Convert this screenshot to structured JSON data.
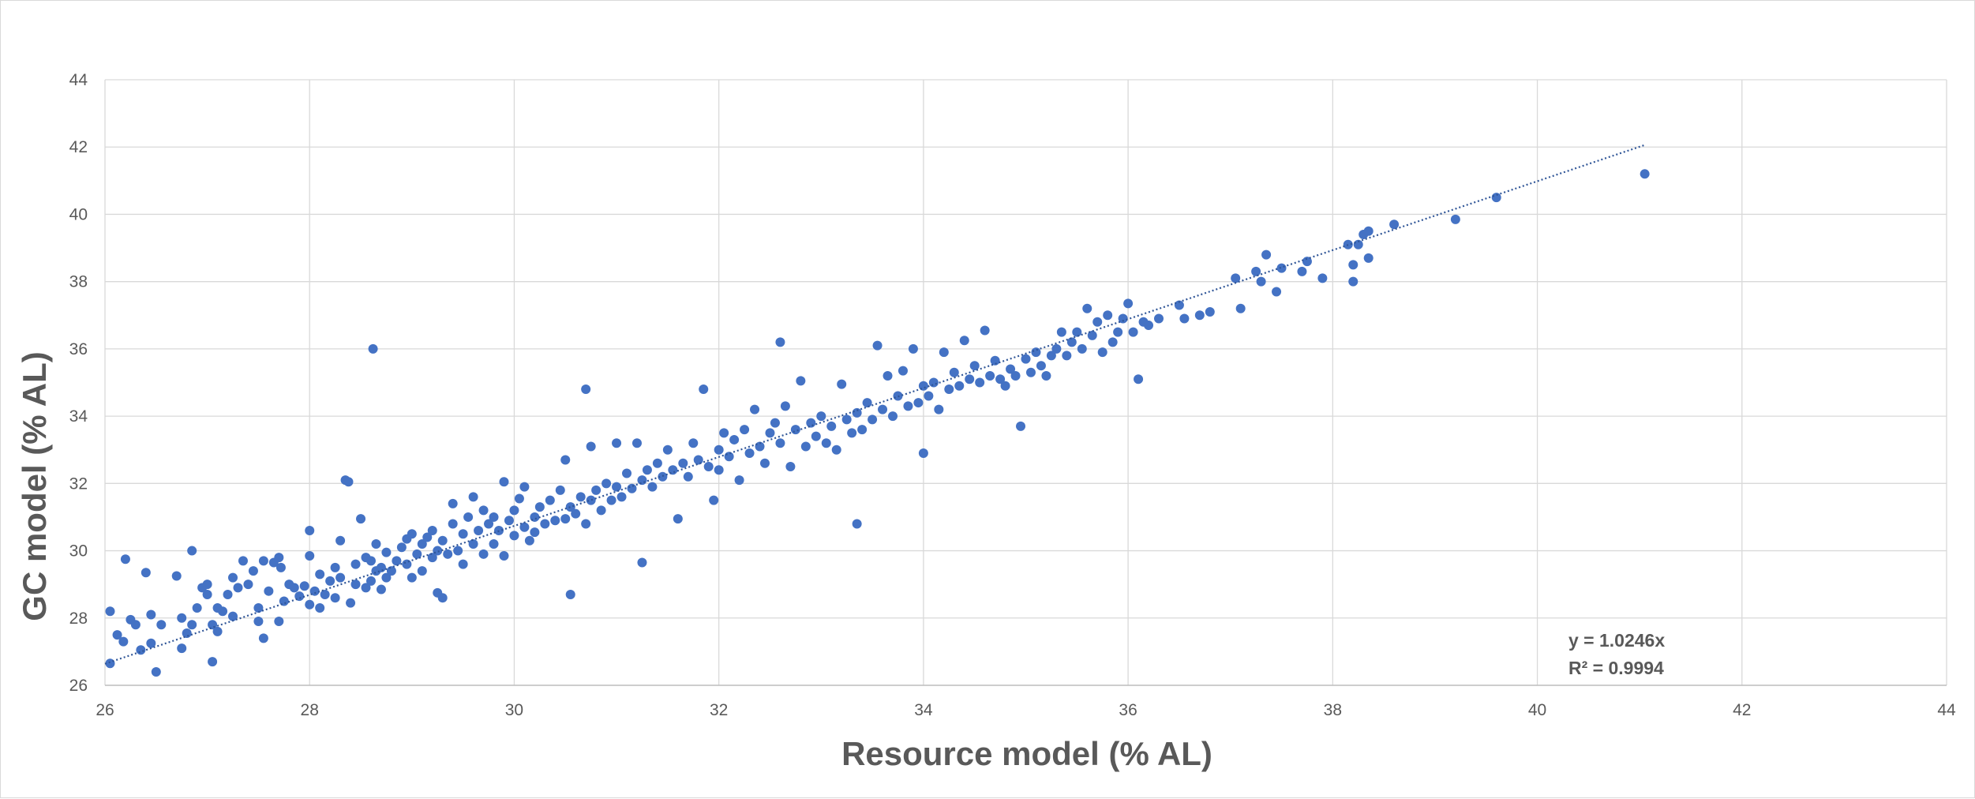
{
  "chart_data": {
    "type": "scatter",
    "title": "",
    "xlabel": "Resource model (% AL)",
    "ylabel": "GC model (% AL)",
    "xlim": [
      26,
      44
    ],
    "ylim": [
      26,
      44
    ],
    "xticks": [
      26,
      28,
      30,
      32,
      34,
      36,
      38,
      40,
      42,
      44
    ],
    "yticks": [
      26,
      28,
      30,
      32,
      34,
      36,
      38,
      40,
      42,
      44
    ],
    "xtick_labels": [
      "26",
      "28",
      "30",
      "32",
      "34",
      "36",
      "38",
      "40",
      "42",
      "44"
    ],
    "ytick_labels": [
      "26",
      "28",
      "30",
      "32",
      "34",
      "36",
      "38",
      "40",
      "42",
      "44"
    ],
    "grid": true,
    "legend": "none",
    "colors": {
      "points": "#4472C4",
      "trendline": "#2F5597",
      "grid": "#d9d9d9",
      "text": "#595959"
    },
    "trendline": {
      "type": "linear-through-origin",
      "slope": 1.0246,
      "x_range": [
        26,
        41.05
      ],
      "equation_label": "y = 1.0246x",
      "r2_label": "R² = 0.9994"
    },
    "series": [
      {
        "name": "GC vs Resource",
        "points": [
          [
            26.05,
            28.2
          ],
          [
            26.05,
            26.65
          ],
          [
            26.12,
            27.5
          ],
          [
            26.18,
            27.3
          ],
          [
            26.2,
            29.75
          ],
          [
            26.25,
            27.95
          ],
          [
            26.3,
            27.8
          ],
          [
            26.35,
            27.05
          ],
          [
            26.4,
            29.35
          ],
          [
            26.45,
            27.25
          ],
          [
            26.45,
            28.1
          ],
          [
            26.5,
            26.4
          ],
          [
            26.55,
            27.8
          ],
          [
            26.7,
            29.25
          ],
          [
            26.75,
            28.0
          ],
          [
            26.75,
            27.1
          ],
          [
            26.8,
            27.55
          ],
          [
            26.85,
            30.0
          ],
          [
            26.85,
            27.8
          ],
          [
            26.9,
            28.3
          ],
          [
            26.95,
            28.9
          ],
          [
            27.0,
            29.0
          ],
          [
            27.0,
            28.7
          ],
          [
            27.05,
            26.7
          ],
          [
            27.05,
            27.8
          ],
          [
            27.1,
            27.6
          ],
          [
            27.1,
            28.3
          ],
          [
            27.15,
            28.2
          ],
          [
            27.2,
            28.7
          ],
          [
            27.25,
            28.05
          ],
          [
            27.25,
            29.2
          ],
          [
            27.3,
            28.9
          ],
          [
            27.35,
            29.7
          ],
          [
            27.4,
            29.0
          ],
          [
            27.45,
            29.4
          ],
          [
            27.5,
            27.9
          ],
          [
            27.5,
            28.3
          ],
          [
            27.55,
            27.4
          ],
          [
            27.55,
            29.7
          ],
          [
            27.6,
            28.8
          ],
          [
            27.65,
            29.65
          ],
          [
            27.7,
            27.9
          ],
          [
            27.7,
            29.8
          ],
          [
            27.72,
            29.5
          ],
          [
            27.75,
            28.5
          ],
          [
            27.8,
            29.0
          ],
          [
            27.85,
            28.9
          ],
          [
            27.9,
            28.65
          ],
          [
            27.95,
            28.95
          ],
          [
            28.0,
            28.4
          ],
          [
            28.0,
            29.85
          ],
          [
            28.0,
            30.6
          ],
          [
            28.05,
            28.8
          ],
          [
            28.1,
            28.3
          ],
          [
            28.1,
            29.3
          ],
          [
            28.15,
            28.7
          ],
          [
            28.2,
            29.1
          ],
          [
            28.25,
            28.6
          ],
          [
            28.25,
            29.5
          ],
          [
            28.3,
            29.2
          ],
          [
            28.3,
            30.3
          ],
          [
            28.35,
            32.1
          ],
          [
            28.38,
            32.05
          ],
          [
            28.4,
            28.45
          ],
          [
            28.45,
            29.0
          ],
          [
            28.45,
            29.6
          ],
          [
            28.5,
            30.95
          ],
          [
            28.55,
            28.9
          ],
          [
            28.55,
            29.8
          ],
          [
            28.6,
            29.1
          ],
          [
            28.6,
            29.7
          ],
          [
            28.62,
            36.0
          ],
          [
            28.65,
            29.4
          ],
          [
            28.65,
            30.2
          ],
          [
            28.7,
            28.85
          ],
          [
            28.7,
            29.5
          ],
          [
            28.75,
            29.2
          ],
          [
            28.75,
            29.95
          ],
          [
            28.8,
            29.4
          ],
          [
            28.85,
            29.7
          ],
          [
            28.9,
            30.1
          ],
          [
            28.95,
            29.6
          ],
          [
            28.95,
            30.35
          ],
          [
            29.0,
            29.2
          ],
          [
            29.0,
            30.5
          ],
          [
            29.05,
            29.9
          ],
          [
            29.1,
            30.2
          ],
          [
            29.1,
            29.4
          ],
          [
            29.15,
            30.4
          ],
          [
            29.2,
            29.8
          ],
          [
            29.2,
            30.6
          ],
          [
            29.25,
            30.0
          ],
          [
            29.25,
            28.75
          ],
          [
            29.3,
            28.6
          ],
          [
            29.3,
            30.3
          ],
          [
            29.35,
            29.9
          ],
          [
            29.4,
            30.8
          ],
          [
            29.4,
            31.4
          ],
          [
            29.45,
            30.0
          ],
          [
            29.5,
            30.5
          ],
          [
            29.5,
            29.6
          ],
          [
            29.55,
            31.0
          ],
          [
            29.6,
            30.2
          ],
          [
            29.6,
            31.6
          ],
          [
            29.65,
            30.6
          ],
          [
            29.7,
            29.9
          ],
          [
            29.7,
            31.2
          ],
          [
            29.75,
            30.8
          ],
          [
            29.8,
            30.2
          ],
          [
            29.8,
            31.0
          ],
          [
            29.85,
            30.6
          ],
          [
            29.9,
            32.05
          ],
          [
            29.9,
            29.85
          ],
          [
            29.95,
            30.9
          ],
          [
            30.0,
            31.2
          ],
          [
            30.0,
            30.45
          ],
          [
            30.05,
            31.55
          ],
          [
            30.1,
            30.7
          ],
          [
            30.1,
            31.9
          ],
          [
            30.15,
            30.3
          ],
          [
            30.2,
            31.0
          ],
          [
            30.2,
            30.55
          ],
          [
            30.25,
            31.3
          ],
          [
            30.3,
            30.8
          ],
          [
            30.35,
            31.5
          ],
          [
            30.4,
            30.9
          ],
          [
            30.45,
            31.8
          ],
          [
            30.5,
            30.95
          ],
          [
            30.5,
            32.7
          ],
          [
            30.55,
            28.7
          ],
          [
            30.55,
            31.3
          ],
          [
            30.6,
            31.1
          ],
          [
            30.65,
            31.6
          ],
          [
            30.7,
            34.8
          ],
          [
            30.7,
            30.8
          ],
          [
            30.75,
            33.1
          ],
          [
            30.75,
            31.5
          ],
          [
            30.8,
            31.8
          ],
          [
            30.85,
            31.2
          ],
          [
            30.9,
            32.0
          ],
          [
            30.95,
            31.5
          ],
          [
            31.0,
            33.2
          ],
          [
            31.0,
            31.9
          ],
          [
            31.05,
            31.6
          ],
          [
            31.1,
            32.3
          ],
          [
            31.15,
            31.85
          ],
          [
            31.2,
            33.2
          ],
          [
            31.25,
            29.65
          ],
          [
            31.25,
            32.1
          ],
          [
            31.3,
            32.4
          ],
          [
            31.35,
            31.9
          ],
          [
            31.4,
            32.6
          ],
          [
            31.45,
            32.2
          ],
          [
            31.5,
            33.0
          ],
          [
            31.55,
            32.4
          ],
          [
            31.6,
            30.95
          ],
          [
            31.65,
            32.6
          ],
          [
            31.7,
            32.2
          ],
          [
            31.75,
            33.2
          ],
          [
            31.8,
            32.7
          ],
          [
            31.85,
            34.8
          ],
          [
            31.9,
            32.5
          ],
          [
            31.95,
            31.5
          ],
          [
            32.0,
            33.0
          ],
          [
            32.0,
            32.4
          ],
          [
            32.05,
            33.5
          ],
          [
            32.1,
            32.8
          ],
          [
            32.15,
            33.3
          ],
          [
            32.2,
            32.1
          ],
          [
            32.25,
            33.6
          ],
          [
            32.3,
            32.9
          ],
          [
            32.35,
            34.2
          ],
          [
            32.4,
            33.1
          ],
          [
            32.45,
            32.6
          ],
          [
            32.5,
            33.5
          ],
          [
            32.55,
            33.8
          ],
          [
            32.6,
            36.2
          ],
          [
            32.6,
            33.2
          ],
          [
            32.65,
            34.3
          ],
          [
            32.7,
            32.5
          ],
          [
            32.75,
            33.6
          ],
          [
            32.8,
            35.05
          ],
          [
            32.85,
            33.1
          ],
          [
            32.9,
            33.8
          ],
          [
            32.95,
            33.4
          ],
          [
            33.0,
            34.0
          ],
          [
            33.05,
            33.2
          ],
          [
            33.1,
            33.7
          ],
          [
            33.15,
            33.0
          ],
          [
            33.2,
            34.95
          ],
          [
            33.25,
            33.9
          ],
          [
            33.3,
            33.5
          ],
          [
            33.35,
            30.8
          ],
          [
            33.35,
            34.1
          ],
          [
            33.4,
            33.6
          ],
          [
            33.45,
            34.4
          ],
          [
            33.5,
            33.9
          ],
          [
            33.55,
            36.1
          ],
          [
            33.6,
            34.2
          ],
          [
            33.65,
            35.2
          ],
          [
            33.7,
            34.0
          ],
          [
            33.75,
            34.6
          ],
          [
            33.8,
            35.35
          ],
          [
            33.85,
            34.3
          ],
          [
            33.9,
            36.0
          ],
          [
            33.95,
            34.4
          ],
          [
            34.0,
            32.9
          ],
          [
            34.0,
            34.9
          ],
          [
            34.05,
            34.6
          ],
          [
            34.1,
            35.0
          ],
          [
            34.15,
            34.2
          ],
          [
            34.2,
            35.9
          ],
          [
            34.25,
            34.8
          ],
          [
            34.3,
            35.3
          ],
          [
            34.35,
            34.9
          ],
          [
            34.4,
            36.25
          ],
          [
            34.45,
            35.1
          ],
          [
            34.5,
            35.5
          ],
          [
            34.55,
            35.0
          ],
          [
            34.6,
            36.55
          ],
          [
            34.65,
            35.2
          ],
          [
            34.7,
            35.65
          ],
          [
            34.75,
            35.1
          ],
          [
            34.8,
            34.9
          ],
          [
            34.85,
            35.4
          ],
          [
            34.9,
            35.2
          ],
          [
            34.95,
            33.7
          ],
          [
            35.0,
            35.7
          ],
          [
            35.05,
            35.3
          ],
          [
            35.1,
            35.9
          ],
          [
            35.15,
            35.5
          ],
          [
            35.2,
            35.2
          ],
          [
            35.25,
            35.8
          ],
          [
            35.3,
            36.0
          ],
          [
            35.35,
            36.5
          ],
          [
            35.4,
            35.8
          ],
          [
            35.45,
            36.2
          ],
          [
            35.5,
            36.5
          ],
          [
            35.55,
            36.0
          ],
          [
            35.6,
            37.2
          ],
          [
            35.65,
            36.4
          ],
          [
            35.7,
            36.8
          ],
          [
            35.75,
            35.9
          ],
          [
            35.8,
            37.0
          ],
          [
            35.85,
            36.2
          ],
          [
            35.9,
            36.5
          ],
          [
            35.95,
            36.9
          ],
          [
            36.0,
            37.35
          ],
          [
            36.05,
            36.5
          ],
          [
            36.1,
            35.1
          ],
          [
            36.15,
            36.8
          ],
          [
            36.2,
            36.7
          ],
          [
            36.3,
            36.9
          ],
          [
            36.5,
            37.3
          ],
          [
            36.55,
            36.9
          ],
          [
            36.7,
            37.0
          ],
          [
            36.8,
            37.1
          ],
          [
            37.05,
            38.1
          ],
          [
            37.1,
            37.2
          ],
          [
            37.25,
            38.3
          ],
          [
            37.3,
            38.0
          ],
          [
            37.35,
            38.8
          ],
          [
            37.45,
            37.7
          ],
          [
            37.5,
            38.4
          ],
          [
            37.7,
            38.3
          ],
          [
            37.75,
            38.6
          ],
          [
            37.9,
            38.1
          ],
          [
            38.15,
            39.1
          ],
          [
            38.2,
            38.5
          ],
          [
            38.2,
            38.0
          ],
          [
            38.25,
            39.1
          ],
          [
            38.3,
            39.4
          ],
          [
            38.35,
            39.5
          ],
          [
            38.35,
            38.7
          ],
          [
            38.6,
            39.7
          ],
          [
            39.2,
            39.85
          ],
          [
            39.6,
            40.5
          ],
          [
            41.05,
            41.2
          ]
        ]
      }
    ]
  }
}
